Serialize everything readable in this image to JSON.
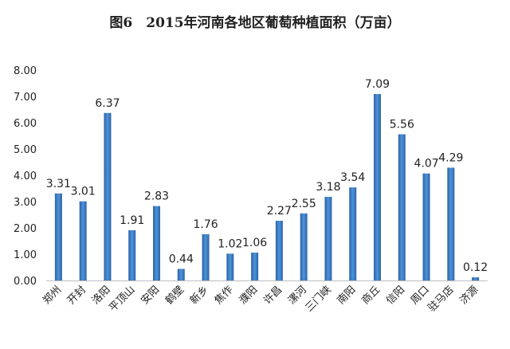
{
  "chart_data": {
    "type": "bar",
    "title": "图6　2015年河南各地区葡萄种植面积（万亩）",
    "xlabel": "",
    "ylabel": "",
    "ylim": [
      0,
      8
    ],
    "yticks": [
      "0.00",
      "1.00",
      "2.00",
      "3.00",
      "4.00",
      "5.00",
      "6.00",
      "7.00",
      "8.00"
    ],
    "categories": [
      "郑州",
      "开封",
      "洛阳",
      "平顶山",
      "安阳",
      "鹤壁",
      "新乡",
      "焦作",
      "濮阳",
      "许昌",
      "漯河",
      "三门峡",
      "南阳",
      "商丘",
      "信阳",
      "周口",
      "驻马店",
      "济源"
    ],
    "values": [
      3.31,
      3.01,
      6.37,
      1.91,
      2.83,
      0.44,
      1.76,
      1.02,
      1.06,
      2.27,
      2.55,
      3.18,
      3.54,
      7.09,
      5.56,
      4.07,
      4.29,
      0.12
    ],
    "data_labels": [
      "3.31",
      "3.01",
      "6.37",
      "1.91",
      "2.83",
      "0.44",
      "1.76",
      "1.02",
      "1.06",
      "2.27",
      "2.55",
      "3.18",
      "3.54",
      "7.09",
      "5.56",
      "4.07",
      "4.29",
      "0.12"
    ],
    "bar_color": "#3a7cc4",
    "grid": false,
    "legend": "none"
  }
}
